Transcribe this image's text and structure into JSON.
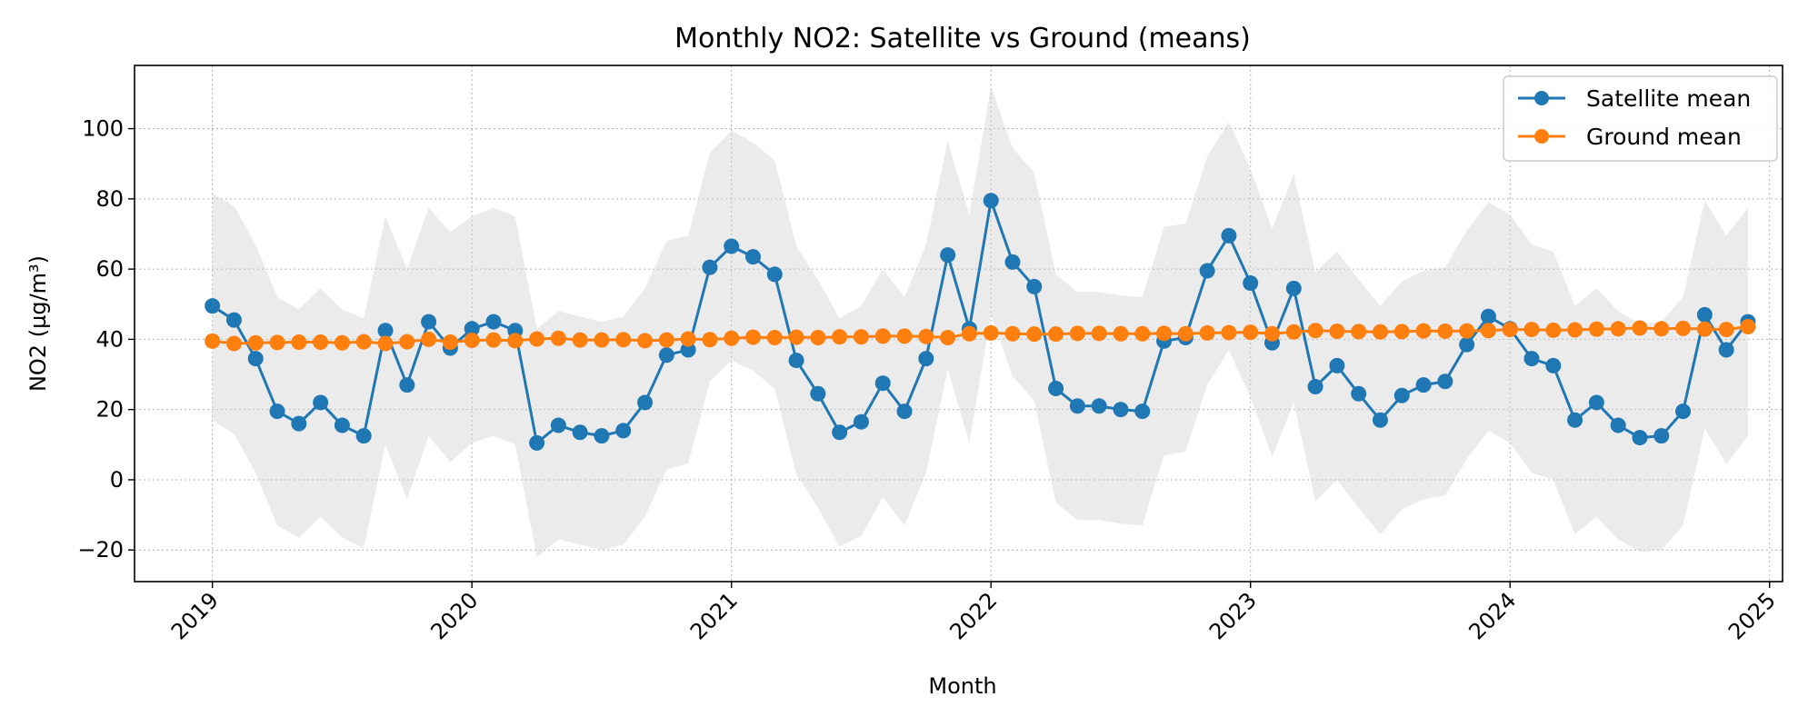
{
  "chart_data": {
    "type": "line",
    "title": "Monthly NO2: Satellite vs Ground (means)",
    "xlabel": "Month",
    "ylabel": "NO2 (µg/m³)",
    "grid": true,
    "legend_position": "top-right",
    "x_range": [
      2018.7,
      2025.05
    ],
    "ylim": [
      -29,
      118
    ],
    "x_ticks": [
      2019,
      2020,
      2021,
      2022,
      2023,
      2024,
      2025
    ],
    "x_tick_labels": [
      "2019",
      "2020",
      "2021",
      "2022",
      "2023",
      "2024",
      "2025"
    ],
    "y_ticks": [
      -20,
      0,
      20,
      40,
      60,
      80,
      100
    ],
    "y_tick_labels": [
      "−20",
      "0",
      "20",
      "40",
      "60",
      "80",
      "100"
    ],
    "start_year": 2019,
    "months": 72,
    "series": [
      {
        "name": "Satellite mean",
        "color": "#1f77b4",
        "values": [
          49.5,
          45.5,
          34.5,
          19.5,
          16,
          22,
          15.5,
          12.5,
          42.5,
          27,
          45,
          37.5,
          43,
          45,
          42.5,
          10.5,
          15.5,
          13.5,
          12.5,
          14,
          22,
          35.5,
          37,
          60.5,
          66.5,
          63.5,
          58.5,
          34,
          24.5,
          13.5,
          16.5,
          27.5,
          19.5,
          34.5,
          64,
          43,
          79.5,
          62,
          55,
          26,
          21,
          21,
          20,
          19.5,
          39.5,
          40.5,
          59.5,
          69.5,
          56,
          39,
          54.5,
          26.5,
          32.5,
          24.5,
          17,
          24,
          27,
          28,
          38.5,
          46.5,
          43,
          34.5,
          32.5,
          17,
          22,
          15.5,
          12,
          12.5,
          19.5,
          47,
          37,
          45
        ]
      },
      {
        "name": "Ground mean",
        "color": "#ff7f0e",
        "values": [
          39.5,
          38.8,
          39,
          39.1,
          39.2,
          39.2,
          39,
          39.3,
          38.8,
          39.3,
          40,
          39.2,
          39.7,
          39.8,
          39.6,
          40.1,
          40.3,
          39.8,
          39.8,
          39.9,
          39.6,
          39.8,
          40.1,
          39.9,
          40.3,
          40.6,
          40.5,
          40.6,
          40.5,
          40.7,
          40.7,
          40.9,
          40.9,
          40.8,
          40.5,
          41.6,
          41.8,
          41.6,
          41.5,
          41.5,
          41.7,
          41.7,
          41.6,
          41.6,
          41.7,
          41.6,
          41.8,
          41.9,
          42,
          41.6,
          42.1,
          42.5,
          42.3,
          42.2,
          42.1,
          42.2,
          42.4,
          42.3,
          42.4,
          42.5,
          42.8,
          42.8,
          42.6,
          42.7,
          42.9,
          43,
          43.2,
          43,
          43.1,
          42.9,
          42.8,
          43.6
        ]
      }
    ],
    "band": {
      "name": "Satellite spread",
      "color": "#d3d3d3",
      "upper": [
        81.5,
        78,
        67,
        52,
        48.5,
        54.5,
        48.5,
        46,
        75,
        60,
        77.5,
        70.5,
        75,
        77.5,
        75,
        43,
        48,
        46.5,
        45,
        46.5,
        54.5,
        68,
        69.5,
        93,
        99.5,
        96,
        91,
        66.5,
        57,
        46,
        49.5,
        60,
        52,
        67,
        96.5,
        75.5,
        112,
        94.5,
        87.5,
        58.5,
        53.5,
        53.5,
        52.5,
        52,
        72,
        73,
        92,
        102,
        88.5,
        71.5,
        87,
        59,
        65,
        57,
        49.5,
        56.5,
        59.5,
        60.5,
        71,
        79,
        75.5,
        67,
        65,
        49.5,
        54.5,
        48,
        44.5,
        45,
        52,
        79.5,
        69.5,
        77.5
      ],
      "lower": [
        17,
        13,
        2,
        -13,
        -16.5,
        -10.5,
        -16.5,
        -19.5,
        10,
        -5.5,
        12.5,
        5,
        10.5,
        12.5,
        10,
        -22,
        -17,
        -18.5,
        -20,
        -18.5,
        -10.5,
        3,
        4.5,
        28,
        34,
        31,
        26,
        1.5,
        -8,
        -19,
        -16,
        -5,
        -13,
        2,
        31.5,
        10.5,
        47,
        29.5,
        22.5,
        -6.5,
        -11.5,
        -11.5,
        -12.5,
        -13,
        7,
        8,
        27,
        37,
        23.5,
        6.5,
        22,
        -6,
        0,
        -8,
        -15.5,
        -8.5,
        -5.5,
        -4.5,
        6,
        14,
        10.5,
        2,
        0,
        -15.5,
        -10.5,
        -17,
        -20.5,
        -20,
        -13,
        14.5,
        4.5,
        12.5
      ]
    }
  }
}
